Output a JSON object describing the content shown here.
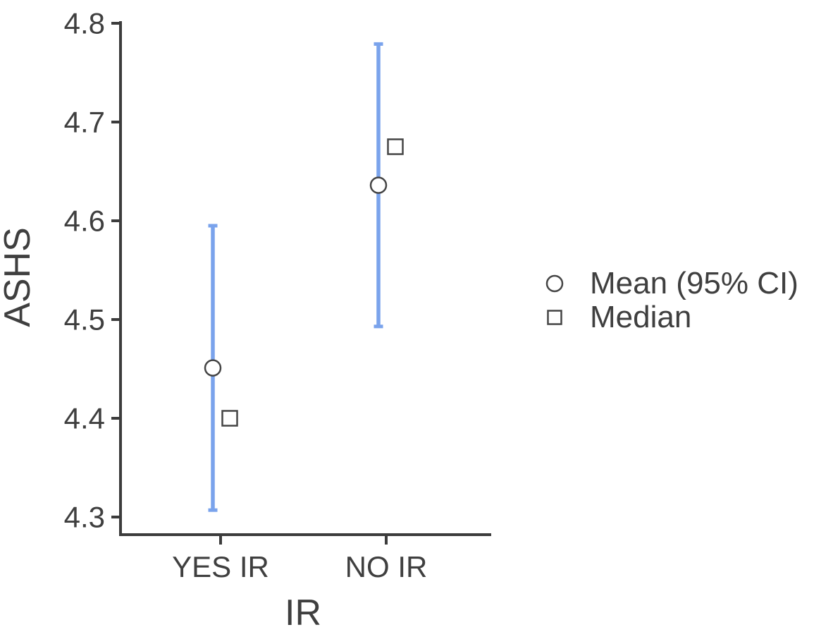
{
  "chart_data": {
    "type": "scatter",
    "title": "",
    "xlabel": "IR",
    "ylabel": "ASHS",
    "categories": [
      "YES IR",
      "NO IR"
    ],
    "y_ticks": [
      4.3,
      4.4,
      4.5,
      4.6,
      4.7,
      4.8
    ],
    "ylim": [
      4.28,
      4.8
    ],
    "grid": false,
    "legend_position": "right",
    "series": [
      {
        "name": "Mean (95% CI)",
        "marker": "circle",
        "values": [
          4.451,
          4.636
        ],
        "ci_lower": [
          4.307,
          4.493
        ],
        "ci_upper": [
          4.595,
          4.779
        ]
      },
      {
        "name": "Median",
        "marker": "square",
        "values": [
          4.4,
          4.675
        ]
      }
    ],
    "colors": {
      "error_bar": "#7AA3EC",
      "axis": "#3C3C3C",
      "text": "#3F3F3F",
      "marker_stroke": "#454545",
      "marker_fill": "#FFFFFF",
      "background": "#FFFFFF"
    }
  }
}
